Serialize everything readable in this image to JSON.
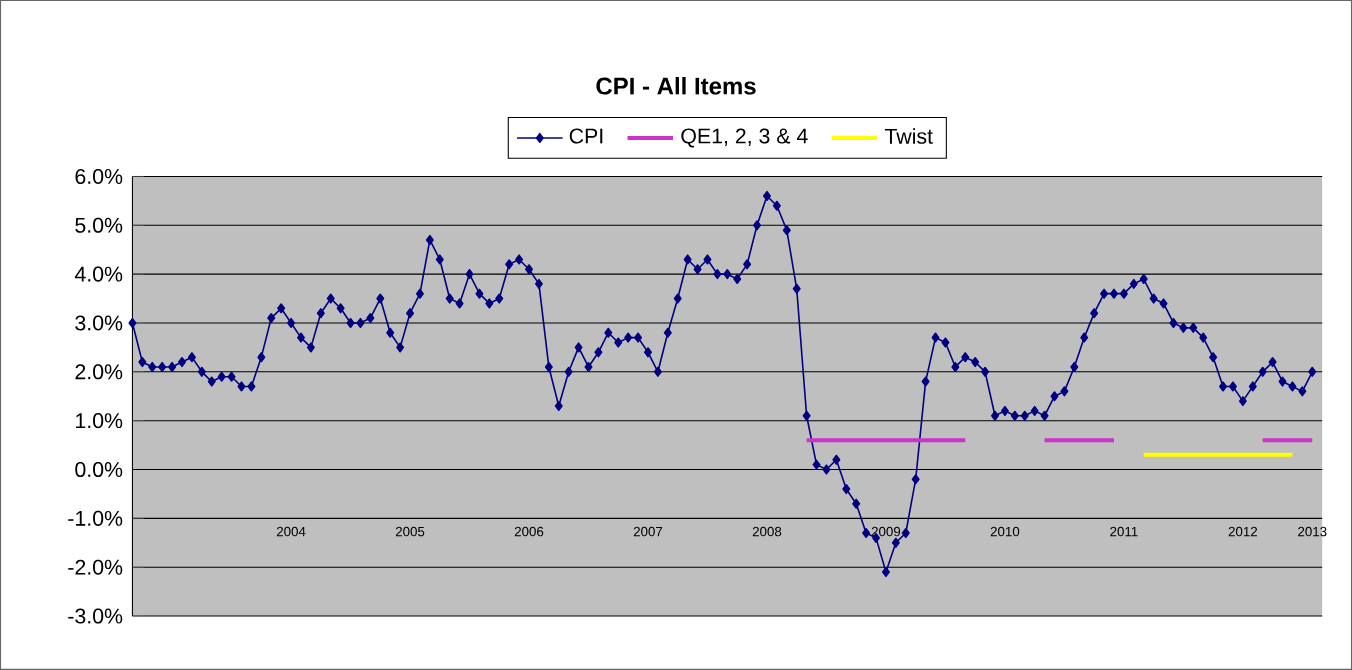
{
  "chart_data": {
    "type": "line",
    "title": "CPI - All Items",
    "ylim": [
      -3,
      6
    ],
    "yticks": [
      {
        "value": -3,
        "label": "-3.0%"
      },
      {
        "value": -2,
        "label": "-2.0%"
      },
      {
        "value": -1,
        "label": "-1.0%"
      },
      {
        "value": 0,
        "label": "0.0%"
      },
      {
        "value": 1,
        "label": "1.0%"
      },
      {
        "value": 2,
        "label": "2.0%"
      },
      {
        "value": 3,
        "label": "3.0%"
      },
      {
        "value": 4,
        "label": "4.0%"
      },
      {
        "value": 5,
        "label": "5.0%"
      },
      {
        "value": 6,
        "label": "6.0%"
      }
    ],
    "xlim": [
      "2003-03",
      "2013-03"
    ],
    "xticks": [
      {
        "value": "2004-07",
        "label": "2004"
      },
      {
        "value": "2005-07",
        "label": "2005"
      },
      {
        "value": "2006-07",
        "label": "2006"
      },
      {
        "value": "2007-07",
        "label": "2007"
      },
      {
        "value": "2008-07",
        "label": "2008"
      },
      {
        "value": "2009-07",
        "label": "2009"
      },
      {
        "value": "2010-07",
        "label": "2010"
      },
      {
        "value": "2011-07",
        "label": "2011"
      },
      {
        "value": "2012-07",
        "label": "2012"
      },
      {
        "value": "2013-02",
        "label": "2013"
      }
    ],
    "grid": "y",
    "legend": "top",
    "marker": "diamond",
    "line_style": "solid",
    "series": [
      {
        "name": "CPI",
        "color": "#000080",
        "x": [
          "2003-03",
          "2003-04",
          "2003-05",
          "2003-06",
          "2003-07",
          "2003-08",
          "2003-09",
          "2003-10",
          "2003-11",
          "2003-12",
          "2004-01",
          "2004-02",
          "2004-03",
          "2004-04",
          "2004-05",
          "2004-06",
          "2004-07",
          "2004-08",
          "2004-09",
          "2004-10",
          "2004-11",
          "2004-12",
          "2005-01",
          "2005-02",
          "2005-03",
          "2005-04",
          "2005-05",
          "2005-06",
          "2005-07",
          "2005-08",
          "2005-09",
          "2005-10",
          "2005-11",
          "2005-12",
          "2006-01",
          "2006-02",
          "2006-03",
          "2006-04",
          "2006-05",
          "2006-06",
          "2006-07",
          "2006-08",
          "2006-09",
          "2006-10",
          "2006-11",
          "2006-12",
          "2007-01",
          "2007-02",
          "2007-03",
          "2007-04",
          "2007-05",
          "2007-06",
          "2007-07",
          "2007-08",
          "2007-09",
          "2007-10",
          "2007-11",
          "2007-12",
          "2008-01",
          "2008-02",
          "2008-03",
          "2008-04",
          "2008-05",
          "2008-06",
          "2008-07",
          "2008-08",
          "2008-09",
          "2008-10",
          "2008-11",
          "2008-12",
          "2009-01",
          "2009-02",
          "2009-03",
          "2009-04",
          "2009-05",
          "2009-06",
          "2009-07",
          "2009-08",
          "2009-09",
          "2009-10",
          "2009-11",
          "2009-12",
          "2010-01",
          "2010-02",
          "2010-03",
          "2010-04",
          "2010-05",
          "2010-06",
          "2010-07",
          "2010-08",
          "2010-09",
          "2010-10",
          "2010-11",
          "2010-12",
          "2011-01",
          "2011-02",
          "2011-03",
          "2011-04",
          "2011-05",
          "2011-06",
          "2011-07",
          "2011-08",
          "2011-09",
          "2011-10",
          "2011-11",
          "2011-12",
          "2012-01",
          "2012-02",
          "2012-03",
          "2012-04",
          "2012-05",
          "2012-06",
          "2012-07",
          "2012-08",
          "2012-09",
          "2012-10",
          "2012-11",
          "2012-12",
          "2013-01",
          "2013-02"
        ],
        "values": [
          3.0,
          2.2,
          2.1,
          2.1,
          2.1,
          2.2,
          2.3,
          2.0,
          1.8,
          1.9,
          1.9,
          1.7,
          1.7,
          2.3,
          3.1,
          3.3,
          3.0,
          2.7,
          2.5,
          3.2,
          3.5,
          3.3,
          3.0,
          3.0,
          3.1,
          3.5,
          2.8,
          2.5,
          3.2,
          3.6,
          4.7,
          4.3,
          3.5,
          3.4,
          4.0,
          3.6,
          3.4,
          3.5,
          4.2,
          4.3,
          4.1,
          3.8,
          2.1,
          1.3,
          2.0,
          2.5,
          2.1,
          2.4,
          2.8,
          2.6,
          2.7,
          2.7,
          2.4,
          2.0,
          2.8,
          3.5,
          4.3,
          4.1,
          4.3,
          4.0,
          4.0,
          3.9,
          4.2,
          5.0,
          5.6,
          5.4,
          4.9,
          3.7,
          1.1,
          0.1,
          0.0,
          0.2,
          -0.4,
          -0.7,
          -1.3,
          -1.4,
          -2.1,
          -1.5,
          -1.3,
          -0.2,
          1.8,
          2.7,
          2.6,
          2.1,
          2.3,
          2.2,
          2.0,
          1.1,
          1.2,
          1.1,
          1.1,
          1.2,
          1.1,
          1.5,
          1.6,
          2.1,
          2.7,
          3.2,
          3.6,
          3.6,
          3.6,
          3.8,
          3.9,
          3.5,
          3.4,
          3.0,
          2.9,
          2.9,
          2.7,
          2.3,
          1.7,
          1.7,
          1.4,
          1.7,
          2.0,
          2.2,
          1.8,
          1.7,
          1.6,
          2.0
        ]
      },
      {
        "name": "QE1, 2, 3 & 4",
        "color": "#cc33cc",
        "marker": "none",
        "x": [
          "2008-11",
          "2010-03",
          "2010-07",
          "2010-11",
          "2011-06",
          "2011-08",
          "2012-09",
          "2013-02"
        ],
        "values": [
          0.6,
          0.6,
          null,
          0.6,
          0.6,
          null,
          0.6,
          0.6
        ]
      },
      {
        "name": "Twist",
        "color": "#ffff00",
        "marker": "none",
        "x": [
          "2011-09",
          "2012-12"
        ],
        "values": [
          0.3,
          0.3
        ]
      }
    ]
  }
}
